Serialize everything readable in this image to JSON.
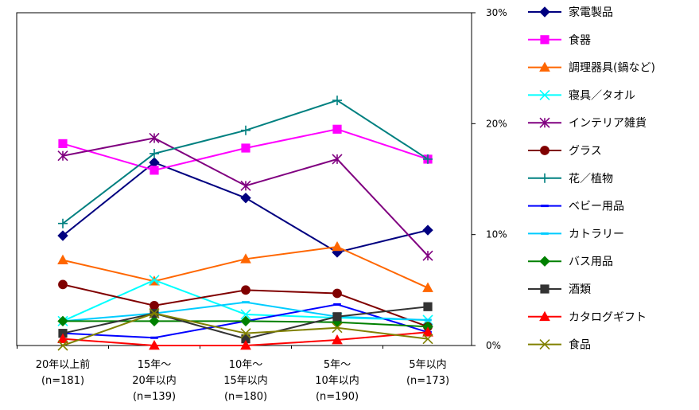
{
  "chart_data": {
    "type": "line",
    "title": "",
    "xlabel": "",
    "ylabel": "",
    "ylim": [
      0,
      30
    ],
    "y_axis_side": "right",
    "y_ticks": [
      "30%",
      "20%",
      "10%",
      "0%"
    ],
    "y_tick_values": [
      30,
      20,
      10,
      0
    ],
    "grid": false,
    "legend": "right",
    "categories": [
      [
        "20年以上前",
        "(n=181)"
      ],
      [
        "15年～",
        "20年以内",
        "(n=139)"
      ],
      [
        "10年～",
        "15年以内",
        "(n=180)"
      ],
      [
        "5年～",
        "10年以内",
        "(n=190)"
      ],
      [
        "5年以内",
        "(n=173)"
      ]
    ],
    "series": [
      {
        "name": "家電製品",
        "color": "#000080",
        "marker": "diamond",
        "values": [
          9.9,
          16.5,
          13.3,
          8.4,
          10.4
        ]
      },
      {
        "name": "食器",
        "color": "#FF00FF",
        "marker": "square",
        "values": [
          18.2,
          15.8,
          17.8,
          19.5,
          16.8
        ]
      },
      {
        "name": "調理器具(鍋など)",
        "color": "#FF6600",
        "marker": "triangle",
        "values": [
          7.7,
          5.8,
          7.8,
          8.9,
          5.2
        ]
      },
      {
        "name": "寝具／タオル",
        "color": "#00FFFF",
        "marker": "x",
        "values": [
          2.2,
          5.9,
          2.8,
          2.5,
          2.3
        ]
      },
      {
        "name": "インテリア雑貨",
        "color": "#800080",
        "marker": "asterisk",
        "values": [
          17.1,
          18.7,
          14.4,
          16.8,
          8.1
        ]
      },
      {
        "name": "グラス",
        "color": "#800000",
        "marker": "circle",
        "values": [
          5.5,
          3.6,
          5.0,
          4.7,
          1.7
        ]
      },
      {
        "name": "花／植物",
        "color": "#008080",
        "marker": "plus",
        "values": [
          11.0,
          17.3,
          19.4,
          22.1,
          16.8
        ]
      },
      {
        "name": "ベビー用品",
        "color": "#0000FF",
        "marker": "dash",
        "values": [
          1.1,
          0.7,
          2.2,
          3.7,
          1.2
        ]
      },
      {
        "name": "カトラリー",
        "color": "#00CCFF",
        "marker": "dash",
        "values": [
          2.2,
          2.9,
          3.9,
          2.6,
          2.3
        ]
      },
      {
        "name": "バス用品",
        "color": "#008000",
        "marker": "diamond",
        "values": [
          2.2,
          2.2,
          2.2,
          2.1,
          1.7
        ]
      },
      {
        "name": "酒類",
        "color": "#333333",
        "marker": "square",
        "values": [
          1.1,
          2.9,
          0.6,
          2.6,
          3.5
        ]
      },
      {
        "name": "カタログギフト",
        "color": "#FF0000",
        "marker": "triangle",
        "values": [
          0.6,
          0.0,
          0.0,
          0.5,
          1.2
        ]
      },
      {
        "name": "食品",
        "color": "#808000",
        "marker": "x",
        "values": [
          0.0,
          2.9,
          1.1,
          1.6,
          0.6
        ]
      }
    ]
  }
}
